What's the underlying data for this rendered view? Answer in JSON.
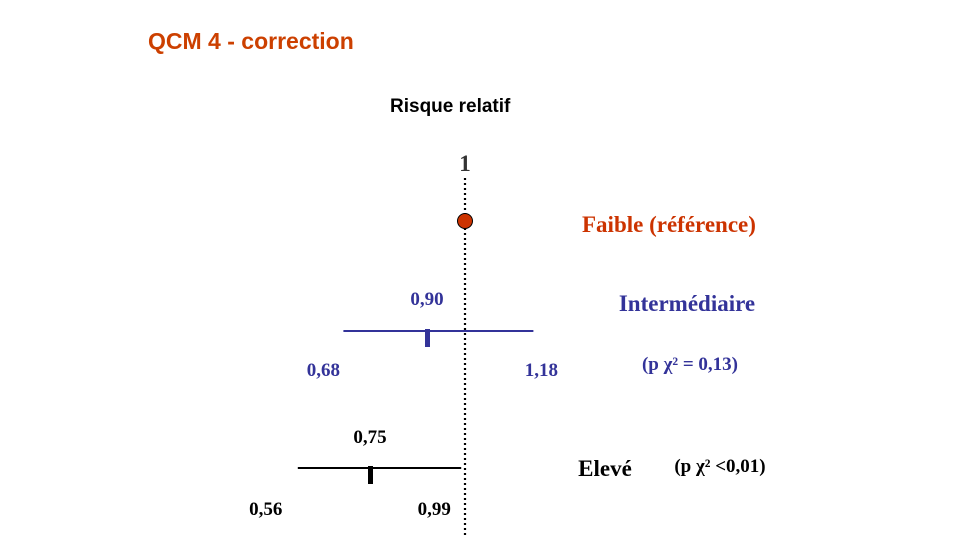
{
  "slide": {
    "title": "QCM 4 - correction"
  },
  "chart_data": {
    "type": "scatter",
    "title": "Risque relatif",
    "reference_value": 1,
    "reference_label": "1",
    "colors": {
      "title": "#cc4000",
      "reference": "#cc3300",
      "intermediaire": "#333399",
      "eleve": "#000000",
      "axis": "#000000"
    },
    "series": [
      {
        "name": "Faible (référence)",
        "estimate": 1,
        "ci_low": null,
        "ci_high": null,
        "estimate_label": "",
        "ci_low_label": "",
        "ci_high_label": "",
        "p_label": ""
      },
      {
        "name": "Intermédiaire",
        "estimate": 0.9,
        "ci_low": 0.68,
        "ci_high": 1.18,
        "estimate_label": "0,90",
        "ci_low_label": "0,68",
        "ci_high_label": "1,18",
        "p_label": "(p χ² = 0,13)"
      },
      {
        "name": "Elevé",
        "estimate": 0.75,
        "ci_low": 0.56,
        "ci_high": 0.99,
        "estimate_label": "0,75",
        "ci_low_label": "0,56",
        "ci_high_label": "0,99",
        "p_label": "(p χ² <0,01)"
      }
    ]
  }
}
